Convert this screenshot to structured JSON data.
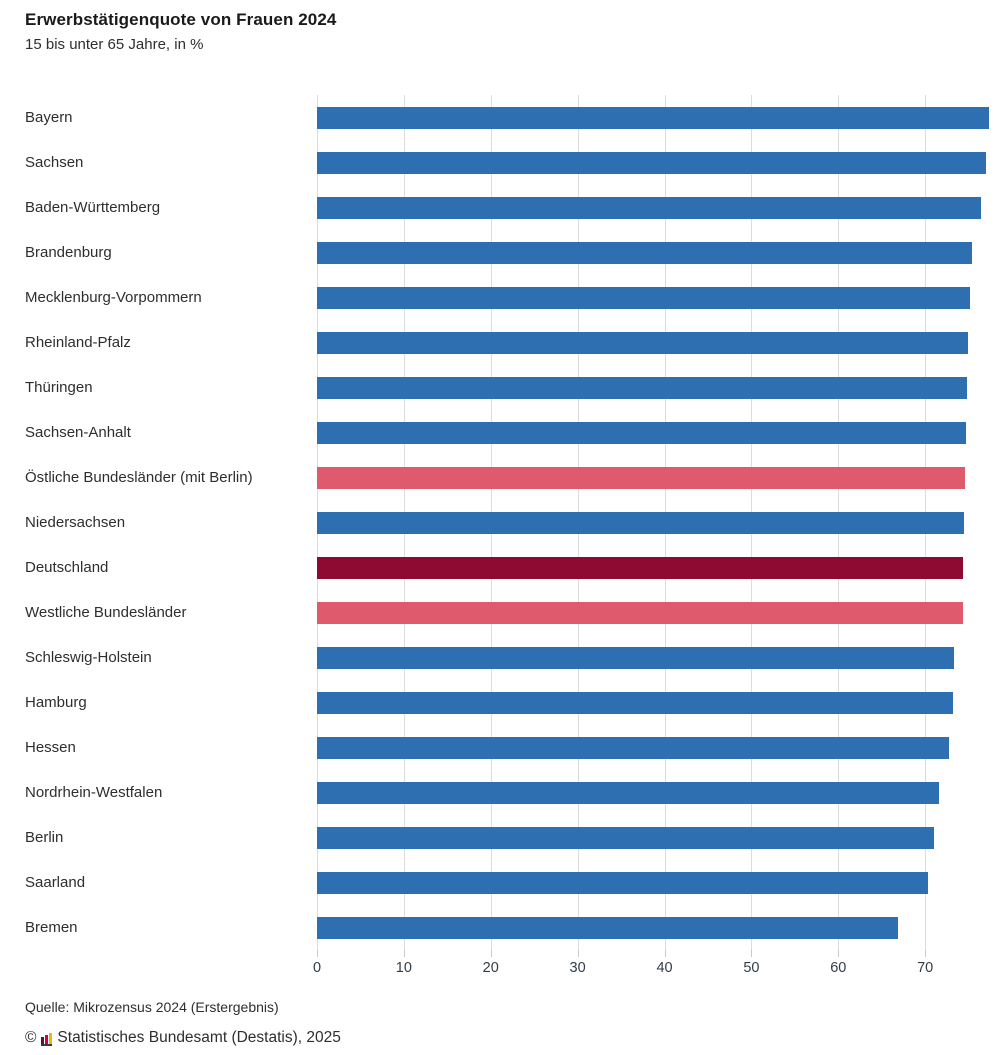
{
  "title": "Erwerbstätigenquote von Frauen 2024",
  "subtitle": "15 bis unter 65 Jahre, in %",
  "footer": {
    "source": "Quelle: Mikrozensus 2024 (Erstergebnis)",
    "copyright_symbol": "©",
    "copyright": "Statistisches Bundesamt (Destatis), 2025",
    "logo": "destatis-mini-bar-chart-logo"
  },
  "colors": {
    "blue": "#2d6fb0",
    "pink": "#e05a6d",
    "darkred": "#8e0a32",
    "gridline": "#dcdcdc"
  },
  "chart_data": {
    "type": "bar",
    "orientation": "horizontal",
    "title": "Erwerbstätigenquote von Frauen 2024",
    "subtitle": "15 bis unter 65 Jahre, in %",
    "xlabel": "",
    "ylabel": "",
    "xlim": [
      0,
      78.5
    ],
    "xticks": [
      0,
      10,
      20,
      30,
      40,
      50,
      60,
      70
    ],
    "grid": "vertical",
    "legend": "none",
    "categories": [
      "Bayern",
      "Sachsen",
      "Baden-Württemberg",
      "Brandenburg",
      "Mecklenburg-Vorpommern",
      "Rheinland-Pfalz",
      "Thüringen",
      "Sachsen-Anhalt",
      "Östliche Bundesländer (mit Berlin)",
      "Niedersachsen",
      "Deutschland",
      "Westliche Bundesländer",
      "Schleswig-Holstein",
      "Hamburg",
      "Hessen",
      "Nordrhein-Westfalen",
      "Berlin",
      "Saarland",
      "Bremen"
    ],
    "values": [
      77.4,
      77.0,
      76.4,
      75.4,
      75.2,
      74.9,
      74.8,
      74.7,
      74.6,
      74.5,
      74.4,
      74.3,
      73.3,
      73.2,
      72.8,
      71.6,
      71.0,
      70.3,
      66.9
    ],
    "bar_styles": [
      "blue",
      "blue",
      "blue",
      "blue",
      "blue",
      "blue",
      "blue",
      "blue",
      "pink",
      "blue",
      "darkred",
      "pink",
      "blue",
      "blue",
      "blue",
      "blue",
      "blue",
      "blue",
      "blue"
    ]
  }
}
